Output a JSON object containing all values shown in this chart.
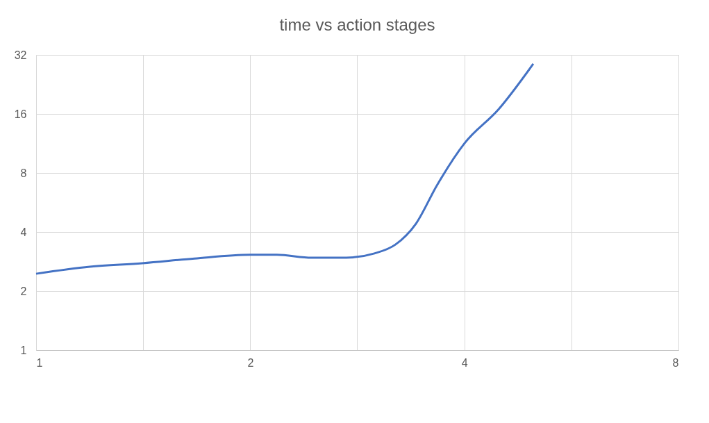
{
  "chart_data": {
    "type": "line",
    "title": "time vs action stages",
    "x": [
      1,
      1.19,
      1.41,
      1.67,
      2,
      2.18,
      2.44,
      2.73,
      2.99,
      3.2,
      3.42,
      3.66,
      4,
      4.47,
      5.0
    ],
    "series": [
      {
        "color": "#4472c4",
        "values": [
          2.45,
          2.66,
          2.77,
          2.93,
          3.06,
          3.06,
          2.96,
          2.96,
          3.11,
          3.45,
          4.41,
          6.91,
          11.3,
          16.9,
          28.8
        ]
      }
    ],
    "log": "xy",
    "xlim": [
      1,
      8
    ],
    "ylim": [
      1,
      32
    ],
    "xticks": [
      1,
      {
        "value": 1.414,
        "label": null
      },
      2,
      {
        "value": 2.828,
        "label": null
      },
      4,
      {
        "value": 5.657,
        "label": null
      },
      8
    ],
    "yticks": [
      1,
      2,
      4,
      8,
      16,
      32
    ],
    "grid": true,
    "marker": "none",
    "line_style": "solid"
  }
}
